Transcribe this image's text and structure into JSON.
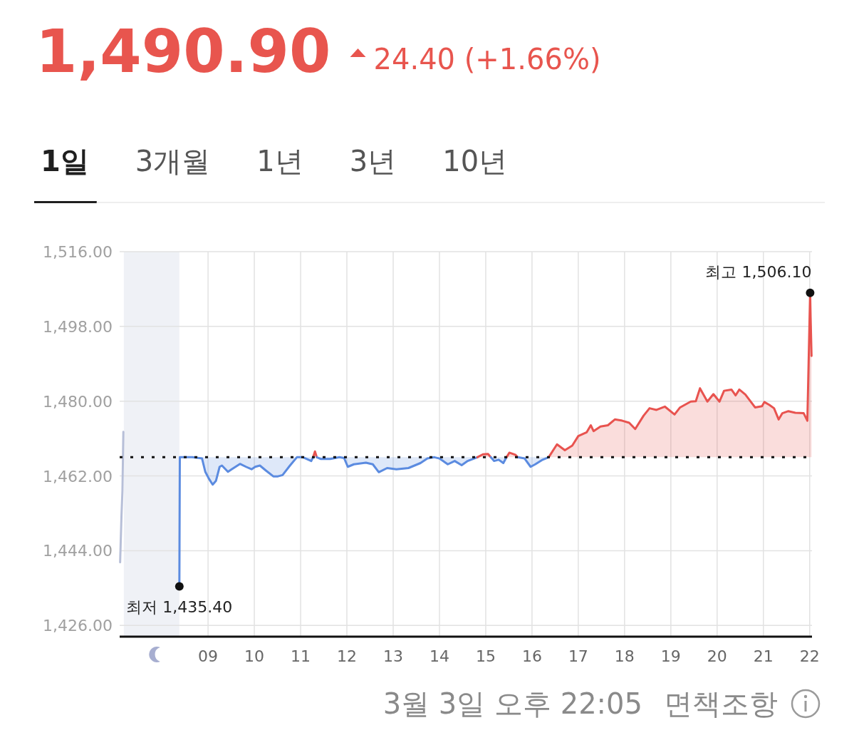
{
  "chart_data": {
    "type": "area",
    "title": "1,490.90",
    "subtitle": "24.40 (+1.66%)",
    "xlim": [
      7.09,
      22.05
    ],
    "xticks": [
      {
        "value": 9,
        "label": "09"
      },
      10,
      11,
      12,
      13,
      14,
      15,
      16,
      17,
      18,
      19,
      20,
      21,
      22
    ],
    "ylim": [
      1423.3,
      1516
    ],
    "yticks": [
      {
        "value": 1426,
        "label": "1,426.00"
      },
      {
        "value": 1444,
        "label": "1,444.00"
      },
      {
        "value": 1462,
        "label": "1,462.00"
      },
      {
        "value": 1480,
        "label": "1,480.00"
      },
      {
        "value": 1498,
        "label": "1,498.00"
      },
      {
        "value": 1516,
        "label": "1,516.00"
      }
    ],
    "grid": true,
    "bands": [
      {
        "axis": "x",
        "from": 7.18,
        "to": 8.38,
        "color": "#eff1f6"
      }
    ],
    "ref_lines": [
      {
        "axis": "y",
        "value": 1466.5,
        "color": "#111111",
        "line_style": "dotted"
      }
    ],
    "series": [
      {
        "type": "line",
        "color": "#b7bfd8",
        "x": [
          7.1,
          7.13,
          7.15,
          7.17
        ],
        "values": [
          1441.2,
          1452.6,
          1458.4,
          1472.6
        ]
      },
      {
        "color": "#5b8be0",
        "x": [
          8.38,
          8.39,
          8.66,
          8.87,
          8.94,
          9.02,
          9.1,
          9.17,
          9.25,
          9.3,
          9.43,
          9.51,
          9.69,
          9.82,
          9.94,
          10.02,
          10.12,
          10.25,
          10.41,
          10.51,
          10.61,
          10.77,
          10.92,
          11.05,
          11.23,
          11.27
        ],
        "values": [
          1435.4,
          1466.5,
          1466.5,
          1466.2,
          1463.0,
          1461.3,
          1459.9,
          1460.8,
          1464.2,
          1464.5,
          1463.0,
          1463.6,
          1464.9,
          1464.2,
          1463.6,
          1464.2,
          1464.5,
          1463.3,
          1461.9,
          1461.9,
          1462.2,
          1464.5,
          1466.5,
          1466.5,
          1465.6,
          1466.5
        ]
      },
      {
        "color": "#e8534f",
        "x": [
          11.27,
          11.31,
          11.35
        ],
        "values": [
          1466.5,
          1467.9,
          1466.5
        ]
      },
      {
        "color": "#5b8be0",
        "x": [
          11.35,
          11.43,
          11.64,
          11.84,
          11.94,
          12.02,
          12.15,
          12.41,
          12.56,
          12.69,
          12.87,
          13.07,
          13.33,
          13.59,
          13.74,
          13.89,
          14.0,
          14.18,
          14.33,
          14.48,
          14.61,
          14.82
        ],
        "values": [
          1466.5,
          1466.1,
          1466.1,
          1466.5,
          1466.3,
          1464.2,
          1464.8,
          1465.2,
          1464.8,
          1462.9,
          1463.9,
          1463.6,
          1463.9,
          1465.1,
          1466.2,
          1466.5,
          1466.2,
          1464.8,
          1465.6,
          1464.6,
          1465.6,
          1466.5
        ]
      },
      {
        "color": "#e8534f",
        "x": [
          14.82,
          14.94,
          15.05,
          15.11
        ],
        "values": [
          1466.5,
          1467.2,
          1467.3,
          1466.5
        ]
      },
      {
        "color": "#5b8be0",
        "x": [
          15.11,
          15.18,
          15.28,
          15.38,
          15.45
        ],
        "values": [
          1466.5,
          1465.6,
          1465.9,
          1465.1,
          1466.5
        ]
      },
      {
        "color": "#e8534f",
        "x": [
          15.45,
          15.51,
          15.64,
          15.69
        ],
        "values": [
          1466.5,
          1467.6,
          1467.1,
          1466.5
        ]
      },
      {
        "color": "#5b8be0",
        "x": [
          15.69,
          15.84,
          15.97,
          16.07,
          16.23,
          16.36
        ],
        "values": [
          1466.5,
          1466.2,
          1464.2,
          1464.8,
          1465.9,
          1466.5
        ]
      },
      {
        "color": "#e8534f",
        "x": [
          16.36,
          16.54,
          16.71,
          16.87,
          17.0,
          17.18,
          17.27,
          17.33,
          17.48,
          17.64,
          17.79,
          17.95,
          18.1,
          18.23,
          18.41,
          18.54,
          18.69,
          18.87,
          19.08,
          19.2,
          19.43,
          19.54,
          19.63,
          19.79,
          19.92,
          20.05,
          20.15,
          20.31,
          20.4,
          20.48,
          20.61,
          20.82,
          20.97,
          21.02,
          21.13,
          21.23,
          21.33,
          21.41,
          21.54,
          21.69,
          21.87,
          21.95,
          21.97,
          22.01,
          22.02,
          22.04
        ],
        "values": [
          1466.5,
          1469.6,
          1468.2,
          1469.3,
          1471.6,
          1472.5,
          1474.2,
          1472.8,
          1473.9,
          1474.2,
          1475.6,
          1475.3,
          1474.8,
          1473.3,
          1476.5,
          1478.3,
          1477.9,
          1478.7,
          1476.8,
          1478.5,
          1479.9,
          1480.0,
          1483.1,
          1479.9,
          1481.7,
          1479.9,
          1482.5,
          1482.8,
          1481.4,
          1482.8,
          1481.6,
          1478.5,
          1478.8,
          1479.8,
          1479.1,
          1478.3,
          1475.6,
          1477.1,
          1477.6,
          1477.2,
          1477.1,
          1475.3,
          1485.6,
          1506.1,
          1500.2,
          1490.9
        ]
      }
    ],
    "annotations": [
      "1일",
      "3개월",
      "1년",
      "3년",
      "10년",
      {
        "text": "최저 1,435.40",
        "x": 8.38,
        "y": 1435.4
      },
      {
        "text": "최고 1,506.10",
        "x": 22.01,
        "y": 1506.1
      },
      "3월 3일 오후 22:05",
      "면책조항"
    ]
  }
}
